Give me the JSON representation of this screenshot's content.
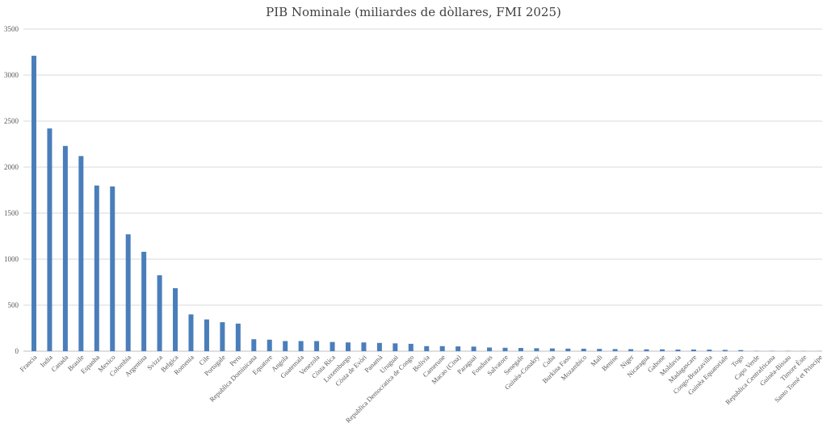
{
  "chart_data": {
    "type": "bar",
    "title": "PIB Nominale (miliardes de dòllares, FMI 2025)",
    "xlabel": "",
    "ylabel": "",
    "ylim": [
      0,
      3500
    ],
    "yticks": [
      0,
      500,
      1000,
      1500,
      2000,
      2500,
      3000,
      3500
    ],
    "grid": true,
    "legend": "none",
    "bar_color": "#4a7ebb",
    "categories": [
      "Francia",
      "India",
      "Canada",
      "Brasile",
      "Espanha",
      "Mexico",
      "Colombia",
      "Argentina",
      "Svizza",
      "Belgica",
      "Romenia",
      "Cile",
      "Portugale",
      "Peru",
      "Republica Dominicana",
      "Equatore",
      "Angola",
      "Guatemala",
      "Venezola",
      "Còsta Rica",
      "Luxemburgo",
      "Còsta de Evòri",
      "Panamà",
      "Uruguai",
      "Republica Democratica de Congo",
      "Bolivia",
      "Camerune",
      "Macao (Cina)",
      "Paraguai",
      "Fonduras",
      "Salvatore",
      "Senegale",
      "Guinèa-Conakry",
      "Cuba",
      "Burkina Faso",
      "Mozambico",
      "Mali",
      "Benine",
      "Niger",
      "Nicaragua",
      "Gabone",
      "Moldavia",
      "Madagascare",
      "Congo-Brazzavilla",
      "Guinèa Equatoriale",
      "Togo",
      "Capo Verde",
      "Republica Centrafricana",
      "Guinèa-Bissau",
      "Timore Èste",
      "Santo Tomé et Principe"
    ],
    "values": [
      3210,
      2420,
      2230,
      2120,
      1800,
      1790,
      1270,
      1080,
      825,
      685,
      400,
      345,
      315,
      300,
      130,
      125,
      110,
      110,
      110,
      100,
      95,
      95,
      90,
      85,
      80,
      55,
      55,
      52,
      50,
      40,
      37,
      35,
      32,
      30,
      28,
      27,
      25,
      23,
      22,
      20,
      20,
      18,
      18,
      17,
      14,
      12,
      3,
      3,
      3,
      2,
      1
    ]
  }
}
